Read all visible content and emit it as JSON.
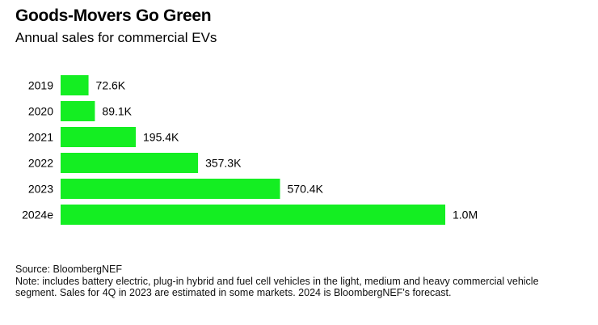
{
  "chart_data": {
    "type": "bar",
    "orientation": "horizontal",
    "title": "Goods-Movers Go Green",
    "subtitle": "Annual sales for commercial EVs",
    "categories": [
      "2019",
      "2020",
      "2021",
      "2022",
      "2023",
      "2024e"
    ],
    "values": [
      72600,
      89100,
      195400,
      357300,
      570400,
      1000000
    ],
    "data_labels": [
      "72.6K",
      "89.1K",
      "195.4K",
      "357.3K",
      "570.4K",
      "1.0M"
    ],
    "xlabel": "",
    "ylabel": "",
    "xlim": [
      0,
      1000000
    ],
    "grid": false,
    "bar_color": "#14ee22"
  },
  "footer": {
    "source": "Source: BloombergNEF",
    "note": "Note: includes battery electric, plug-in hybrid and fuel cell vehicles in the light, medium and heavy commercial vehicle segment. Sales for 4Q in 2023 are estimated in some markets. 2024 is BloombergNEF's forecast."
  }
}
